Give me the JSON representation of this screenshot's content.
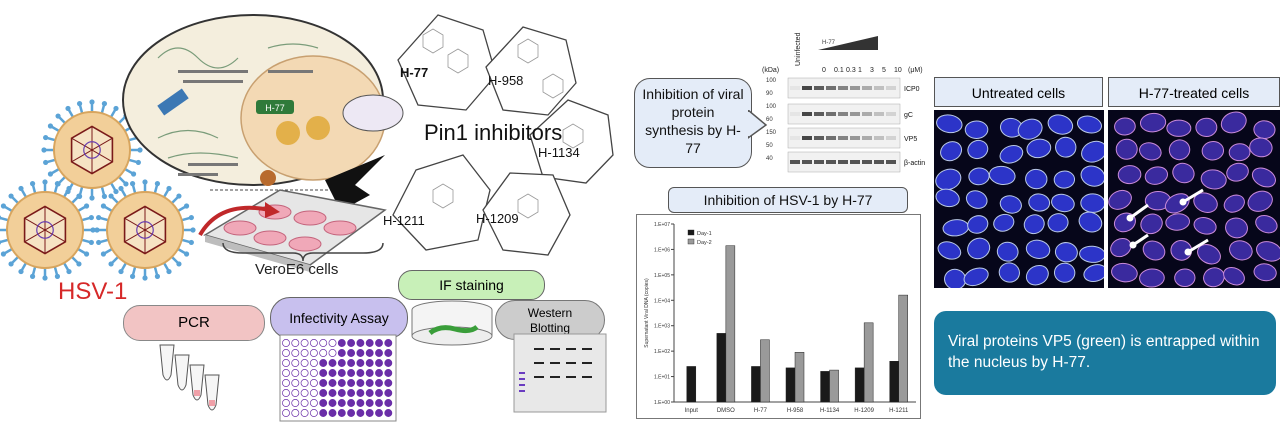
{
  "virus_label": "HSV-1",
  "cells_label": "VeroE6 cells",
  "pin1": {
    "title": "Pin1 inhibitors",
    "compounds": [
      "H-77",
      "H-958",
      "H-1134",
      "H-1211",
      "H-1209"
    ]
  },
  "cell_diagram_label": "H-77",
  "assays": {
    "if_staining": "IF staining",
    "pcr": "PCR",
    "infectivity": "Infectivity Assay",
    "western": "Western Blotting"
  },
  "protein_box": "Inhibition of viral protein synthesis by H-77",
  "western_blot": {
    "unit_left": "(kDa)",
    "unit_right": "(μM)",
    "col_header": "Uninfected",
    "columns": [
      "0",
      "0.1",
      "0.3",
      "1",
      "3",
      "5",
      "10"
    ],
    "bands": [
      "ICP0",
      "gC",
      "VP5",
      "β-actin"
    ],
    "mw_marks": [
      "100",
      "90",
      "100",
      "60",
      "150",
      "50",
      "40"
    ]
  },
  "hsv_chart_title": "Inhibition of HSV-1 by H-77",
  "chart_data": {
    "type": "bar",
    "categories": [
      "Input",
      "DMSO",
      "H-77",
      "H-958",
      "H-1134",
      "H-1209",
      "H-1211"
    ],
    "ylabel": "Supernatant Viral DNA (copies)",
    "yscale": "log",
    "ylim": [
      1,
      10000000
    ],
    "yticks": [
      "1.E+07",
      "1.E+06",
      "1.E+05",
      "1.E+04",
      "1.E+03",
      "1.E+02",
      "1.E+01",
      "1.E+00"
    ],
    "series": [
      {
        "name": "Day-1",
        "color": "#1a1a1a",
        "values": [
          25,
          500,
          25,
          22,
          16,
          22,
          40
        ]
      },
      {
        "name": "Day-2",
        "color": "#9a9a9a",
        "values": [
          null,
          1400000,
          280,
          90,
          18,
          1300,
          16000
        ]
      }
    ]
  },
  "micro": {
    "untreated": "Untreated cells",
    "treated": "H-77-treated cells"
  },
  "caption": "Viral proteins VP5 (green) is entrapped within the nucleus by H-77.",
  "colors": {
    "virus": "#5ba3d6",
    "virus_label": "#d62828",
    "caption_bg": "#1a7a9e",
    "header_bg": "#e4ecf8",
    "pcr_bg": "#f2c4c4",
    "infect_bg": "#c8c0ee",
    "if_bg": "#c8f0b8",
    "western_bg": "#cccccc"
  }
}
